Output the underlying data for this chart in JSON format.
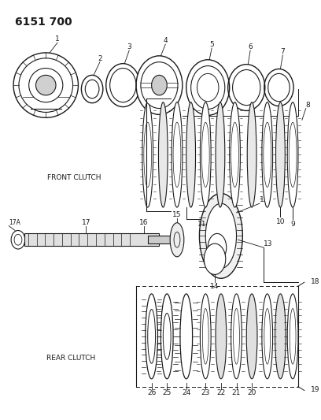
{
  "title": "6151 700",
  "bg_color": "#ffffff",
  "line_color": "#1a1a1a",
  "front_clutch_label": "FRONT CLUTCH",
  "rear_clutch_label": "REAR CLUTCH",
  "fig_width": 4.08,
  "fig_height": 5.33,
  "dpi": 100
}
